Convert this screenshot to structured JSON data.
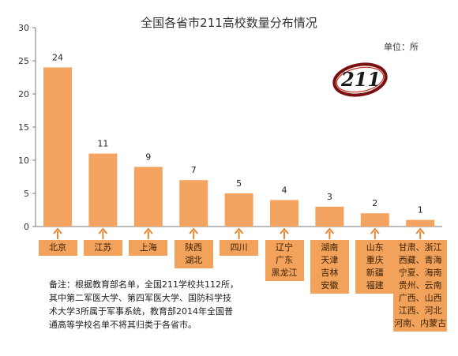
{
  "chart_data": {
    "type": "bar",
    "title": "全国各省市211高校数量分布情况",
    "unit": "单位：所",
    "logo_text": "211",
    "ylim": [
      0,
      30
    ],
    "yticks": [
      "0",
      "5",
      "10",
      "15",
      "20",
      "25",
      "30"
    ],
    "categories": [
      "北京",
      "江苏",
      "上海",
      "陕西 湖北",
      "四川",
      "辽宁 广东 黑龙江",
      "湖南 天津 吉林 安徽",
      "山东 重庆 新疆 福建",
      "甘肃、浙江 西藏、青海 宁夏、海南 贵州、云南 广西、山西 江西、河北 河南、内蒙古"
    ],
    "values": [
      24,
      11,
      9,
      7,
      5,
      4,
      3,
      2,
      1
    ],
    "data_labels": [
      "24",
      "11",
      "9",
      "7",
      "5",
      "4",
      "3",
      "2",
      "1"
    ],
    "category_lines": [
      [
        "北京"
      ],
      [
        "江苏"
      ],
      [
        "上海"
      ],
      [
        "陕西",
        "湖北"
      ],
      [
        "四川"
      ],
      [
        "辽宁",
        "广东",
        "黑龙江"
      ],
      [
        "湖南",
        "天津",
        "吉林",
        "安徽"
      ],
      [
        "山东",
        "重庆",
        "新疆",
        "福建"
      ],
      [
        "甘肃、浙江",
        "西藏、青海",
        "宁夏、海南",
        "贵州、云南",
        "广西、山西",
        "江西、河北",
        "河南、内蒙古"
      ]
    ],
    "bar_color": "#f4a460",
    "label_box_color": "#f2a25a",
    "arrow_color": "#e8862e",
    "grid": false,
    "legend": "none"
  },
  "note": {
    "lines": [
      "备注：根据教育部名单，全国211学校共112所，",
      "其中第二军医大学、第四军医大学、国防科学技",
      "术大学3所属于军事系统，教育部2014年全国普",
      "通高等学校名单不将其归类于各省市。"
    ]
  }
}
